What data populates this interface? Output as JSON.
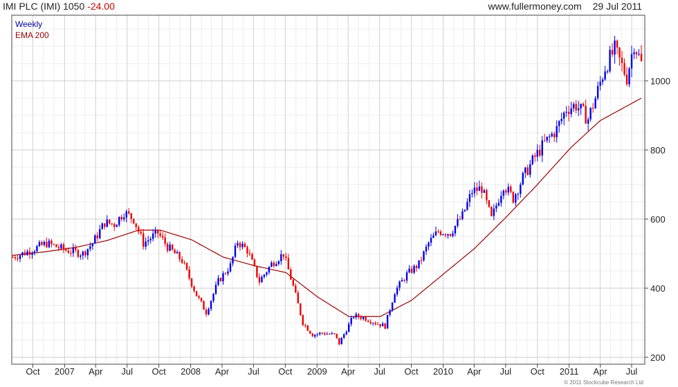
{
  "header": {
    "title": "IMI PLC (IMI) 1050",
    "change": "-24.00",
    "site": "www.fullermoney.com",
    "date": "29 Jul 2011"
  },
  "legend": {
    "series1": "Weekly",
    "series2": "EMA 200"
  },
  "copyright": "© 2011 Stockcube Research Ltd",
  "colors": {
    "up": "#0000ee",
    "down": "#ee0000",
    "ema": "#990000",
    "grid": "#dddddd",
    "frame": "#444444"
  },
  "chart_data": {
    "type": "candlestick",
    "title": "IMI PLC (IMI) 1050 -24.00",
    "ylim": [
      180,
      1190
    ],
    "y_ticks": [
      200,
      400,
      600,
      800,
      1000
    ],
    "x_tick_labels": [
      "Oct",
      "2007",
      "Apr",
      "Jul",
      "Oct",
      "2008",
      "Apr",
      "Jul",
      "Oct",
      "2009",
      "Apr",
      "Jul",
      "Oct",
      "2010",
      "Apr",
      "Jul",
      "Oct",
      "2011",
      "Apr",
      "Jul"
    ],
    "x_tick_dates": [
      "2006-10-01",
      "2007-01-01",
      "2007-04-01",
      "2007-07-01",
      "2007-10-01",
      "2008-01-01",
      "2008-04-01",
      "2008-07-01",
      "2008-10-01",
      "2009-01-01",
      "2009-04-01",
      "2009-07-01",
      "2009-10-01",
      "2010-01-01",
      "2010-04-01",
      "2010-07-01",
      "2010-10-01",
      "2011-01-01",
      "2011-04-01",
      "2011-07-01"
    ],
    "x_range": [
      "2006-08-01",
      "2011-08-08"
    ],
    "grid": true,
    "price_anchors": {
      "dates": [
        "2006-08-04",
        "2006-09-15",
        "2006-11-10",
        "2007-01-05",
        "2007-02-23",
        "2007-03-23",
        "2007-04-27",
        "2007-05-25",
        "2007-06-22",
        "2007-07-20",
        "2007-08-17",
        "2007-09-28",
        "2007-10-26",
        "2007-12-07",
        "2008-01-18",
        "2008-02-15",
        "2008-03-21",
        "2008-04-25",
        "2008-05-16",
        "2008-06-13",
        "2008-07-18",
        "2008-08-22",
        "2008-09-26",
        "2008-10-24",
        "2008-11-21",
        "2008-12-19",
        "2009-01-16",
        "2009-02-20",
        "2009-03-06",
        "2009-04-17",
        "2009-05-15",
        "2009-06-19",
        "2009-07-17",
        "2009-08-14",
        "2009-09-18",
        "2009-10-23",
        "2009-11-20",
        "2009-12-18",
        "2010-01-22",
        "2010-02-26",
        "2010-03-26",
        "2010-04-23",
        "2010-05-21",
        "2010-06-25",
        "2010-07-23",
        "2010-08-20",
        "2010-09-24",
        "2010-10-22",
        "2010-11-26",
        "2010-12-24",
        "2011-01-21",
        "2011-02-25",
        "2011-03-18",
        "2011-04-15",
        "2011-05-13",
        "2011-06-17",
        "2011-07-08",
        "2011-07-29"
      ],
      "closes": [
        490,
        505,
        530,
        510,
        500,
        530,
        590,
        585,
        620,
        600,
        530,
        560,
        520,
        480,
        380,
        330,
        420,
        465,
        535,
        510,
        420,
        470,
        500,
        405,
        300,
        265,
        270,
        265,
        240,
        320,
        315,
        300,
        290,
        390,
        440,
        470,
        530,
        565,
        560,
        610,
        680,
        690,
        600,
        700,
        660,
        720,
        780,
        820,
        860,
        920,
        930,
        890,
        950,
        1040,
        1090,
        1010,
        1110,
        1050
      ]
    },
    "ema": {
      "name": "EMA 200",
      "dates": [
        "2006-08-04",
        "2006-11-03",
        "2007-02-02",
        "2007-05-04",
        "2007-08-03",
        "2007-10-05",
        "2008-01-04",
        "2008-04-04",
        "2008-07-04",
        "2008-10-03",
        "2009-01-02",
        "2009-04-03",
        "2009-07-03",
        "2009-10-02",
        "2010-01-01",
        "2010-04-02",
        "2010-07-02",
        "2010-10-01",
        "2011-01-07",
        "2011-04-01",
        "2011-07-29"
      ],
      "values": [
        495,
        505,
        518,
        538,
        568,
        568,
        540,
        490,
        465,
        445,
        375,
        318,
        318,
        365,
        440,
        515,
        605,
        700,
        808,
        885,
        950
      ]
    }
  }
}
